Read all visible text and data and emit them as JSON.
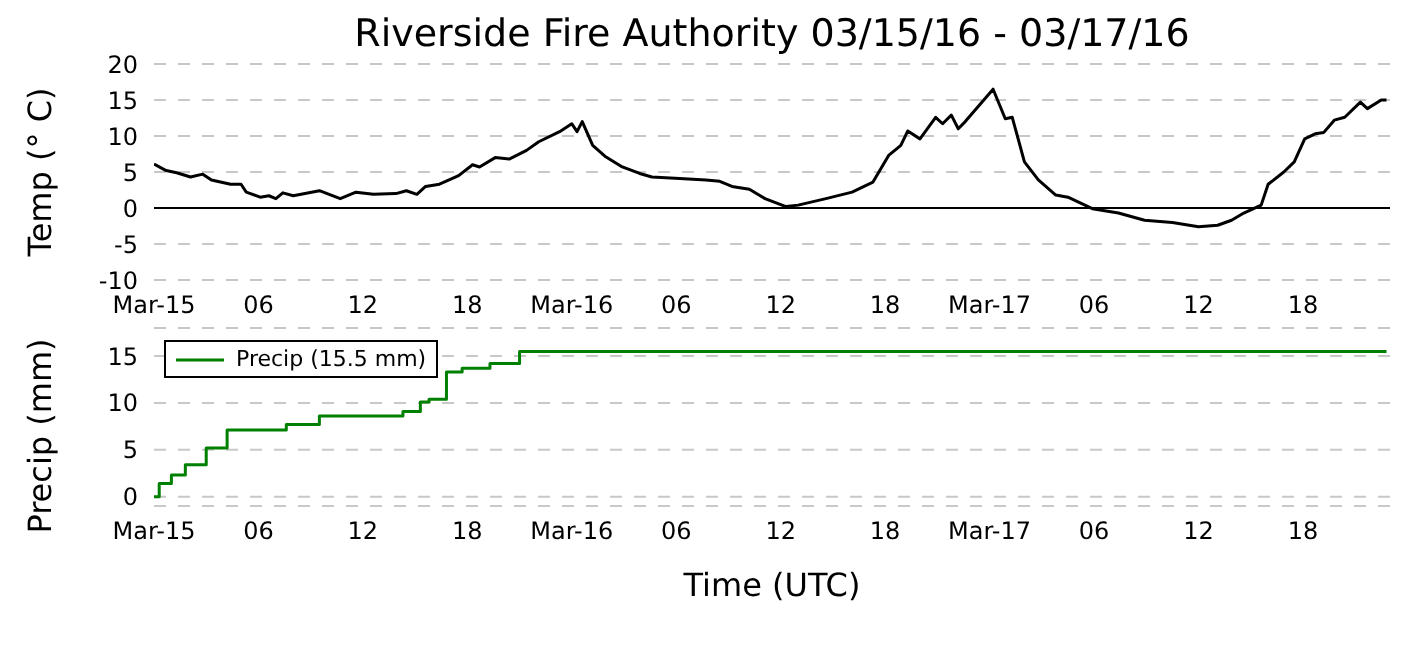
{
  "chart_data": [
    {
      "type": "line",
      "title": "Riverside Fire Authority 03/15/16 - 03/17/16",
      "ylabel": "Temp (° C)",
      "xlim": [
        "--03-15T00:00",
        "--03-17T23:00"
      ],
      "ylim": [
        -10,
        20
      ],
      "yticks": [
        -10,
        -5,
        0,
        5,
        10,
        15,
        20
      ],
      "xticks": [
        {
          "value": "--03-15T00:00",
          "label": "Mar-15"
        },
        {
          "value": "--03-15T06:00",
          "label": "06"
        },
        {
          "value": "--03-15T12:00",
          "label": "12"
        },
        {
          "value": "--03-15T18:00",
          "label": "18"
        },
        {
          "value": "--03-16T00:00",
          "label": "Mar-16"
        },
        {
          "value": "--03-16T06:00",
          "label": "06"
        },
        {
          "value": "--03-16T12:00",
          "label": "12"
        },
        {
          "value": "--03-16T18:00",
          "label": "18"
        },
        {
          "value": "--03-17T00:00",
          "label": "Mar-17"
        },
        {
          "value": "--03-17T06:00",
          "label": "06"
        },
        {
          "value": "--03-17T12:00",
          "label": "12"
        },
        {
          "value": "--03-17T18:00",
          "label": "18"
        }
      ],
      "grid": "y",
      "legend": false,
      "ref_lines": [
        {
          "axis": "y",
          "value": 0,
          "color": "#000000"
        }
      ],
      "series": [
        {
          "color": "#000000",
          "x": [
            "--03-15T00:00",
            "--03-15T00:42",
            "--03-15T01:18",
            "--03-15T02:06",
            "--03-15T02:48",
            "--03-15T03:18",
            "--03-15T04:24",
            "--03-15T05:00",
            "--03-15T05:18",
            "--03-15T06:06",
            "--03-15T06:36",
            "--03-15T07:00",
            "--03-15T07:24",
            "--03-15T08:00",
            "--03-15T09:30",
            "--03-15T10:42",
            "--03-15T11:36",
            "--03-15T12:36",
            "--03-15T13:54",
            "--03-15T14:30",
            "--03-15T15:06",
            "--03-15T15:36",
            "--03-15T16:24",
            "--03-15T17:30",
            "--03-15T18:18",
            "--03-15T18:42",
            "--03-15T19:36",
            "--03-15T20:24",
            "--03-15T21:24",
            "--03-15T22:06",
            "--03-15T23:18",
            "--03-16T00:00",
            "--03-16T00:18",
            "--03-16T00:36",
            "--03-16T01:12",
            "--03-16T01:54",
            "--03-16T02:54",
            "--03-16T03:54",
            "--03-16T04:36",
            "--03-16T06:12",
            "--03-16T07:42",
            "--03-16T08:30",
            "--03-16T09:12",
            "--03-16T10:12",
            "--03-16T11:06",
            "--03-16T12:18",
            "--03-16T13:00",
            "--03-16T14:36",
            "--03-16T16:06",
            "--03-16T17:18",
            "--03-16T18:12",
            "--03-16T18:54",
            "--03-16T19:18",
            "--03-16T20:00",
            "--03-16T20:54",
            "--03-16T21:18",
            "--03-16T21:48",
            "--03-16T22:12",
            "--03-16T22:36",
            "--03-17T00:12",
            "--03-17T00:54",
            "--03-17T01:18",
            "--03-17T02:00",
            "--03-17T02:48",
            "--03-17T03:48",
            "--03-17T04:30",
            "--03-17T05:54",
            "--03-17T07:24",
            "--03-17T08:54",
            "--03-17T10:30",
            "--03-17T12:00",
            "--03-17T13:06",
            "--03-17T13:54",
            "--03-17T14:36",
            "--03-17T15:36",
            "--03-17T16:00",
            "--03-17T16:54",
            "--03-17T17:30",
            "--03-17T18:06",
            "--03-17T18:42",
            "--03-17T19:12",
            "--03-17T19:48",
            "--03-17T20:24",
            "--03-17T21:18",
            "--03-17T21:42",
            "--03-17T22:30",
            "--03-17T22:48"
          ],
          "values": [
            6.1,
            5.2,
            4.9,
            4.3,
            4.7,
            3.9,
            3.3,
            3.3,
            2.2,
            1.5,
            1.7,
            1.3,
            2.1,
            1.7,
            2.4,
            1.3,
            2.2,
            1.9,
            2.0,
            2.4,
            1.9,
            3.0,
            3.3,
            4.5,
            6.0,
            5.7,
            7.0,
            6.8,
            8.0,
            9.2,
            10.6,
            11.7,
            10.6,
            12.0,
            8.7,
            7.2,
            5.7,
            4.8,
            4.3,
            4.1,
            3.9,
            3.7,
            3.0,
            2.6,
            1.3,
            0.2,
            0.4,
            1.3,
            2.2,
            3.6,
            7.3,
            8.7,
            10.7,
            9.6,
            12.6,
            11.7,
            12.9,
            11.0,
            12.0,
            16.5,
            12.4,
            12.6,
            6.4,
            3.9,
            1.8,
            1.5,
            -0.1,
            -0.7,
            -1.7,
            -2.0,
            -2.6,
            -2.4,
            -1.7,
            -0.7,
            0.4,
            3.3,
            5.0,
            6.4,
            9.6,
            10.3,
            10.5,
            12.2,
            12.6,
            14.7,
            13.8,
            15.0,
            15.0
          ]
        }
      ]
    },
    {
      "type": "step",
      "ylabel": "Precip (mm)",
      "xlabel": "Time (UTC)",
      "xlim": [
        "--03-15T00:00",
        "--03-17T23:00"
      ],
      "ylim": [
        -1,
        18
      ],
      "yticks": [
        0,
        5,
        10,
        15
      ],
      "xticks": [
        {
          "value": "--03-15T00:00",
          "label": "Mar-15"
        },
        {
          "value": "--03-15T06:00",
          "label": "06"
        },
        {
          "value": "--03-15T12:00",
          "label": "12"
        },
        {
          "value": "--03-15T18:00",
          "label": "18"
        },
        {
          "value": "--03-16T00:00",
          "label": "Mar-16"
        },
        {
          "value": "--03-16T06:00",
          "label": "06"
        },
        {
          "value": "--03-16T12:00",
          "label": "12"
        },
        {
          "value": "--03-16T18:00",
          "label": "18"
        },
        {
          "value": "--03-17T00:00",
          "label": "Mar-17"
        },
        {
          "value": "--03-17T06:00",
          "label": "06"
        },
        {
          "value": "--03-17T12:00",
          "label": "12"
        },
        {
          "value": "--03-17T18:00",
          "label": "18"
        }
      ],
      "grid": "y",
      "legend": "top left",
      "series": [
        {
          "name": "Precip (15.5 mm)",
          "color": "#008000",
          "x": [
            "--03-15T00:00",
            "--03-15T00:18",
            "--03-15T01:00",
            "--03-15T01:48",
            "--03-15T03:00",
            "--03-15T04:12",
            "--03-15T07:36",
            "--03-15T09:30",
            "--03-15T14:18",
            "--03-15T15:18",
            "--03-15T15:48",
            "--03-15T16:48",
            "--03-15T17:42",
            "--03-15T19:18",
            "--03-15T21:00",
            "--03-17T22:48"
          ],
          "values": [
            0,
            1.4,
            2.3,
            3.4,
            5.2,
            7.1,
            7.7,
            8.6,
            9.1,
            10.1,
            10.4,
            13.3,
            13.7,
            14.2,
            15.5,
            15.5
          ]
        }
      ]
    }
  ]
}
